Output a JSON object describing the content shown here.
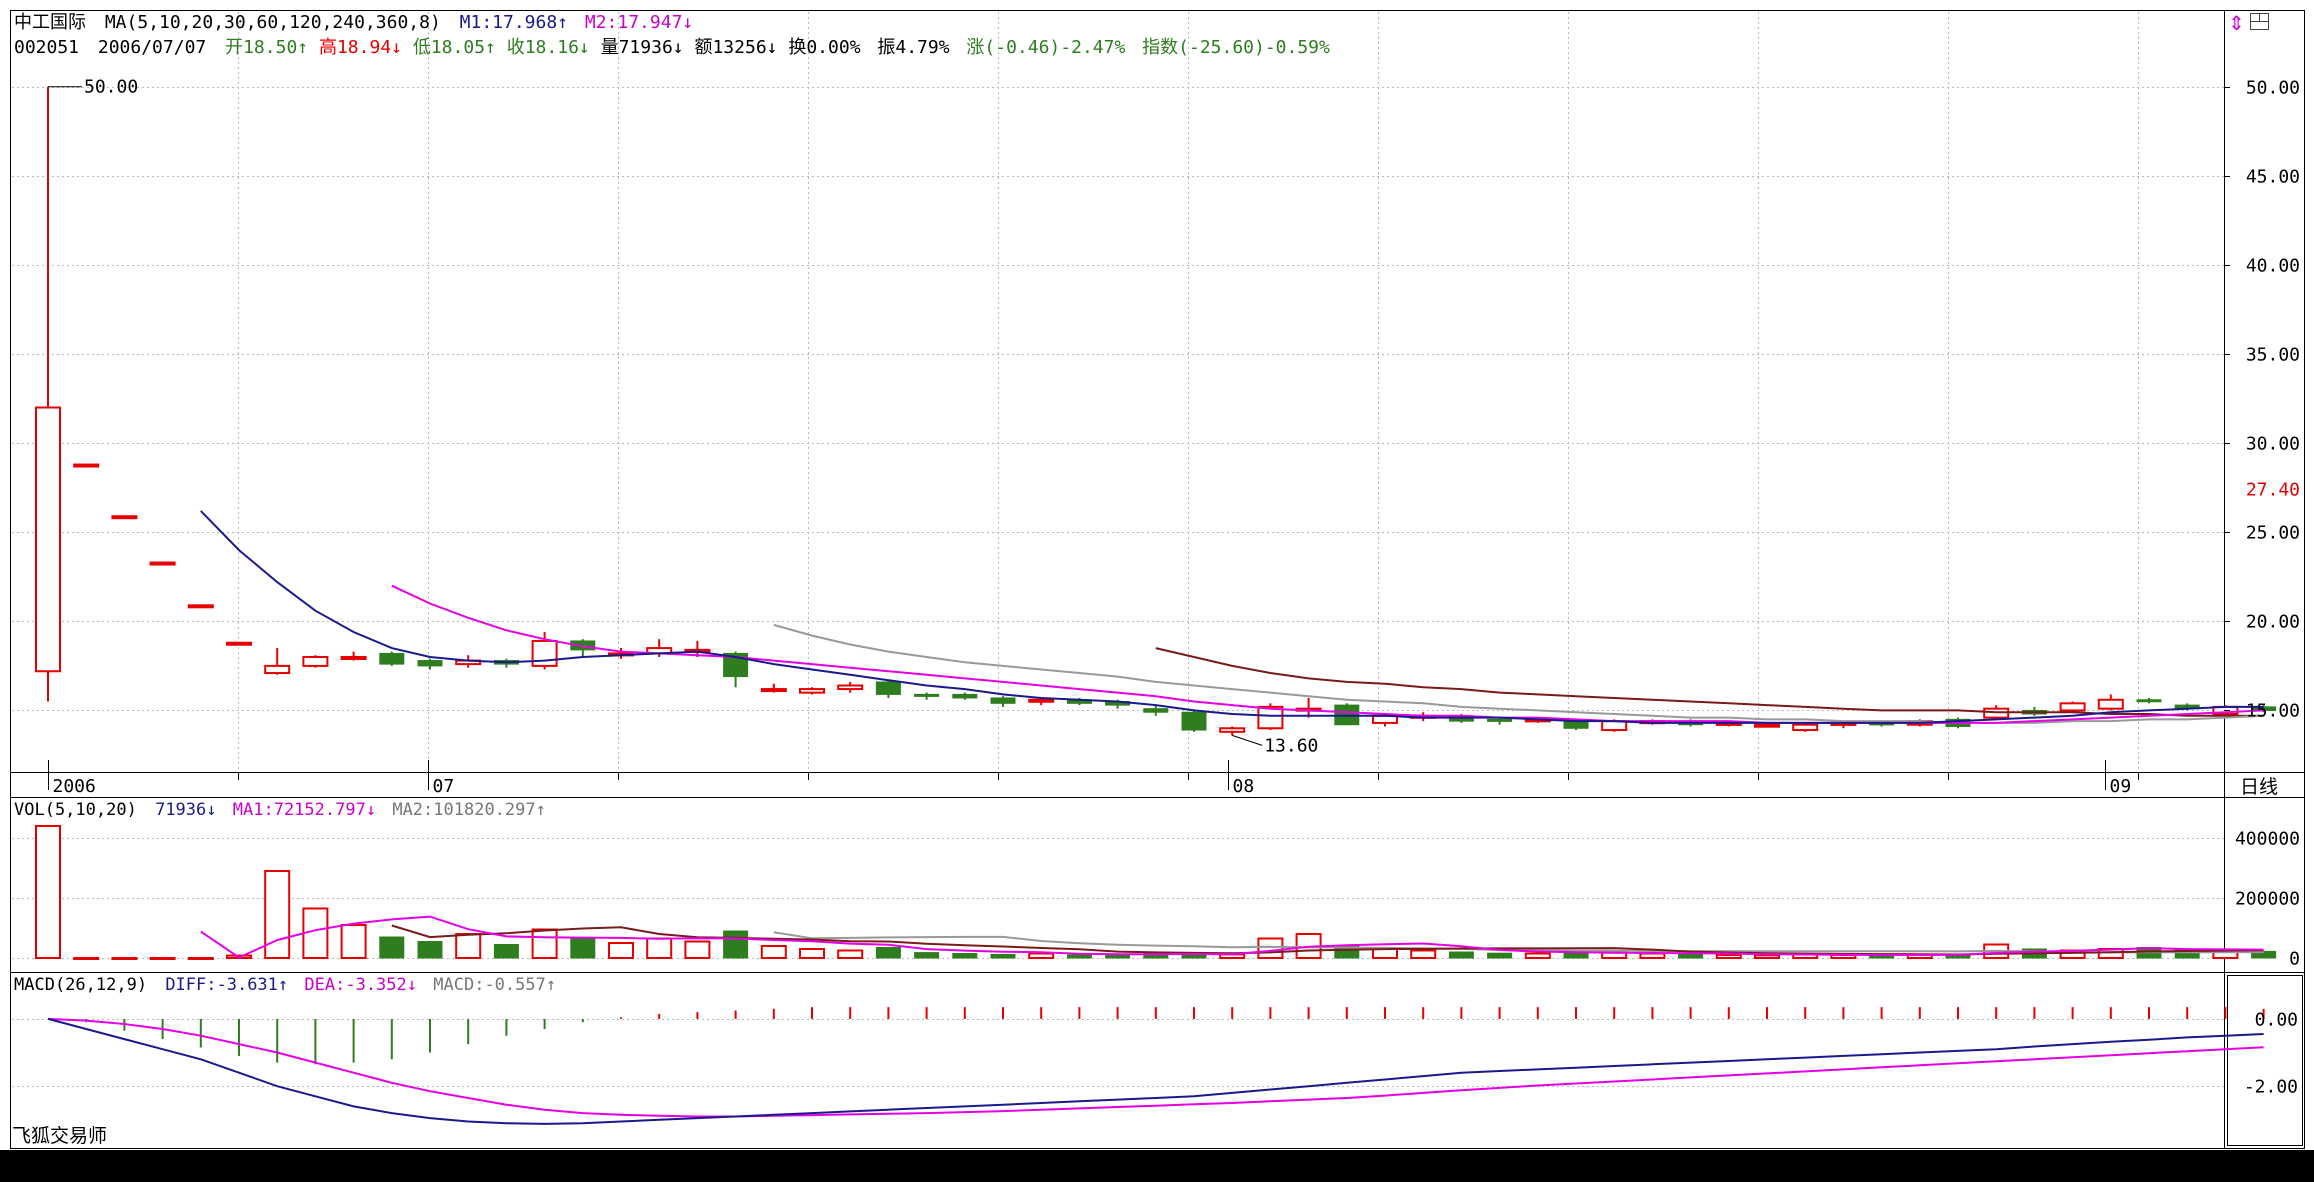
{
  "header": {
    "stock_name": "中工国际",
    "ma_label": "MA(5,10,20,30,60,120,240,360,8)",
    "m1": "M1:17.968",
    "m1_arrow": "↑",
    "m2": "M2:17.947",
    "m2_arrow": "↓",
    "code": "002051",
    "date": "2006/07/07",
    "open": "开18.50",
    "open_arrow": "↑",
    "high": "高18.94",
    "high_arrow": "↓",
    "low": "低18.05",
    "low_arrow": "↑",
    "close": "收18.16",
    "close_arrow": "↓",
    "volume": "量71936",
    "volume_arrow": "↓",
    "amount": "额13256",
    "amount_arrow": "↓",
    "turnover": "换0.00%",
    "amplitude": "振4.79%",
    "change": "涨(-0.46)-2.47%",
    "index_change": "指数(-25.60)-0.59%"
  },
  "price_axis": {
    "ticks": [
      "50.00",
      "45.00",
      "40.00",
      "35.00",
      "30.00",
      "25.00",
      "20.00",
      "15.00"
    ],
    "current_price": "27.40",
    "max_label": "50.00",
    "min_label": "13.60"
  },
  "time_axis": {
    "labels": [
      "2006",
      "07",
      "08",
      "09"
    ],
    "period": "日线"
  },
  "volume_panel": {
    "title": "VOL(5,10,20)",
    "value": "71936",
    "value_arrow": "↓",
    "ma1": "MA1:72152.797",
    "ma1_arrow": "↓",
    "ma2": "MA2:101820.297",
    "ma2_arrow": "↑",
    "ticks": [
      "400000",
      "200000",
      "0"
    ]
  },
  "macd_panel": {
    "title": "MACD(26,12,9)",
    "diff": "DIFF:-3.631",
    "diff_arrow": "↑",
    "dea": "DEA:-3.352",
    "dea_arrow": "↓",
    "macd": "MACD:-0.557",
    "macd_arrow": "↑",
    "ticks": [
      "0.00",
      "-2.00"
    ]
  },
  "app_name": "飞狐交易师",
  "icons": {
    "top_right": [
      "arrows-icon",
      "window-icon"
    ]
  },
  "colors": {
    "up": "#e60000",
    "down": "#2e7d1f",
    "ma1": "#1a1a8c",
    "ma2": "#e600e6",
    "ma3": "#999999",
    "ma4": "#7a1a1a",
    "grid": "#b0b0b0",
    "text_green": "#2e7d1f",
    "text_red": "#e60000",
    "text_blue": "#1a1a8c",
    "text_magenta": "#cc00cc"
  },
  "chart_data": {
    "type": "candlestick",
    "candles": [
      {
        "o": 17.2,
        "h": 50.0,
        "l": 15.5,
        "c": 32.0
      },
      {
        "o": 28.8,
        "h": 28.8,
        "l": 28.8,
        "c": 28.8
      },
      {
        "o": 25.9,
        "h": 25.9,
        "l": 25.9,
        "c": 25.9
      },
      {
        "o": 23.3,
        "h": 23.3,
        "l": 23.3,
        "c": 23.3
      },
      {
        "o": 20.9,
        "h": 20.9,
        "l": 20.9,
        "c": 20.9
      },
      {
        "o": 18.8,
        "h": 18.8,
        "l": 18.8,
        "c": 18.8
      },
      {
        "o": 17.1,
        "h": 18.5,
        "l": 17.0,
        "c": 17.5
      },
      {
        "o": 17.5,
        "h": 18.1,
        "l": 17.4,
        "c": 18.0
      },
      {
        "o": 17.9,
        "h": 18.3,
        "l": 17.8,
        "c": 18.0
      },
      {
        "o": 18.2,
        "h": 18.3,
        "l": 17.5,
        "c": 17.6
      },
      {
        "o": 17.8,
        "h": 17.9,
        "l": 17.3,
        "c": 17.5
      },
      {
        "o": 17.6,
        "h": 18.1,
        "l": 17.4,
        "c": 17.8
      },
      {
        "o": 17.8,
        "h": 17.9,
        "l": 17.4,
        "c": 17.6
      },
      {
        "o": 17.5,
        "h": 19.4,
        "l": 17.3,
        "c": 18.9
      },
      {
        "o": 18.9,
        "h": 19.0,
        "l": 18.0,
        "c": 18.4
      },
      {
        "o": 18.1,
        "h": 18.5,
        "l": 17.9,
        "c": 18.2
      },
      {
        "o": 18.2,
        "h": 19.0,
        "l": 18.0,
        "c": 18.5
      },
      {
        "o": 18.3,
        "h": 18.9,
        "l": 18.0,
        "c": 18.4
      },
      {
        "o": 18.2,
        "h": 18.3,
        "l": 16.3,
        "c": 16.9
      },
      {
        "o": 16.1,
        "h": 16.5,
        "l": 16.0,
        "c": 16.2
      },
      {
        "o": 16.0,
        "h": 16.3,
        "l": 15.9,
        "c": 16.2
      },
      {
        "o": 16.2,
        "h": 16.6,
        "l": 16.0,
        "c": 16.4
      },
      {
        "o": 16.6,
        "h": 16.7,
        "l": 15.7,
        "c": 15.9
      },
      {
        "o": 15.9,
        "h": 16.0,
        "l": 15.6,
        "c": 15.8
      },
      {
        "o": 15.9,
        "h": 16.0,
        "l": 15.6,
        "c": 15.7
      },
      {
        "o": 15.7,
        "h": 15.8,
        "l": 15.2,
        "c": 15.4
      },
      {
        "o": 15.5,
        "h": 15.7,
        "l": 15.3,
        "c": 15.6
      },
      {
        "o": 15.6,
        "h": 15.7,
        "l": 15.3,
        "c": 15.4
      },
      {
        "o": 15.5,
        "h": 15.6,
        "l": 15.1,
        "c": 15.3
      },
      {
        "o": 15.1,
        "h": 15.3,
        "l": 14.7,
        "c": 14.9
      },
      {
        "o": 14.9,
        "h": 15.0,
        "l": 13.8,
        "c": 13.9
      },
      {
        "o": 13.8,
        "h": 14.1,
        "l": 13.6,
        "c": 14.0
      },
      {
        "o": 14.0,
        "h": 15.4,
        "l": 13.9,
        "c": 15.2
      },
      {
        "o": 15.0,
        "h": 15.7,
        "l": 14.6,
        "c": 15.1
      },
      {
        "o": 15.3,
        "h": 15.4,
        "l": 14.2,
        "c": 14.2
      },
      {
        "o": 14.3,
        "h": 14.8,
        "l": 14.1,
        "c": 14.7
      },
      {
        "o": 14.6,
        "h": 14.9,
        "l": 14.4,
        "c": 14.7
      },
      {
        "o": 14.7,
        "h": 14.8,
        "l": 14.3,
        "c": 14.4
      },
      {
        "o": 14.5,
        "h": 14.6,
        "l": 14.2,
        "c": 14.4
      },
      {
        "o": 14.4,
        "h": 14.6,
        "l": 14.3,
        "c": 14.5
      },
      {
        "o": 14.4,
        "h": 14.5,
        "l": 13.9,
        "c": 14.0
      },
      {
        "o": 13.9,
        "h": 14.5,
        "l": 13.8,
        "c": 14.4
      },
      {
        "o": 14.3,
        "h": 14.5,
        "l": 14.2,
        "c": 14.4
      },
      {
        "o": 14.4,
        "h": 14.5,
        "l": 14.1,
        "c": 14.2
      },
      {
        "o": 14.2,
        "h": 14.4,
        "l": 14.1,
        "c": 14.3
      },
      {
        "o": 14.2,
        "h": 14.3,
        "l": 14.1,
        "c": 14.2
      },
      {
        "o": 13.9,
        "h": 14.3,
        "l": 13.8,
        "c": 14.2
      },
      {
        "o": 14.2,
        "h": 14.4,
        "l": 14.0,
        "c": 14.3
      },
      {
        "o": 14.3,
        "h": 14.4,
        "l": 14.1,
        "c": 14.2
      },
      {
        "o": 14.2,
        "h": 14.5,
        "l": 14.1,
        "c": 14.4
      },
      {
        "o": 14.5,
        "h": 14.6,
        "l": 14.0,
        "c": 14.1
      },
      {
        "o": 14.6,
        "h": 15.3,
        "l": 14.5,
        "c": 15.1
      },
      {
        "o": 15.0,
        "h": 15.2,
        "l": 14.7,
        "c": 14.8
      },
      {
        "o": 15.0,
        "h": 15.5,
        "l": 14.9,
        "c": 15.4
      },
      {
        "o": 15.1,
        "h": 15.9,
        "l": 15.0,
        "c": 15.6
      },
      {
        "o": 15.6,
        "h": 15.7,
        "l": 15.4,
        "c": 15.5
      },
      {
        "o": 15.3,
        "h": 15.4,
        "l": 15.0,
        "c": 15.1
      },
      {
        "o": 14.8,
        "h": 15.3,
        "l": 14.7,
        "c": 15.2
      },
      {
        "o": 15.2,
        "h": 15.3,
        "l": 14.9,
        "c": 15.0
      }
    ],
    "ma1": [
      null,
      null,
      null,
      null,
      26.2,
      24.0,
      22.2,
      20.6,
      19.4,
      18.5,
      18.0,
      17.8,
      17.7,
      17.8,
      18.0,
      18.1,
      18.2,
      18.3,
      18.0,
      17.6,
      17.3,
      17.0,
      16.7,
      16.4,
      16.2,
      15.9,
      15.7,
      15.6,
      15.5,
      15.3,
      15.0,
      14.8,
      14.7,
      14.7,
      14.7,
      14.7,
      14.6,
      14.6,
      14.6,
      14.5,
      14.4,
      14.4,
      14.3,
      14.3,
      14.3,
      14.3,
      14.3,
      14.3,
      14.3,
      14.3,
      14.4,
      14.5,
      14.6,
      14.7,
      14.9,
      15.0,
      15.1,
      15.2,
      15.2
    ],
    "ma2": [
      null,
      null,
      null,
      null,
      null,
      null,
      null,
      null,
      null,
      22.0,
      21.0,
      20.2,
      19.5,
      19.0,
      18.6,
      18.3,
      18.2,
      18.1,
      18.0,
      17.8,
      17.6,
      17.4,
      17.2,
      17.0,
      16.8,
      16.6,
      16.4,
      16.2,
      16.0,
      15.8,
      15.5,
      15.3,
      15.1,
      15.0,
      14.9,
      14.8,
      14.7,
      14.7,
      14.6,
      14.6,
      14.5,
      14.4,
      14.4,
      14.4,
      14.4,
      14.3,
      14.3,
      14.3,
      14.3,
      14.3,
      14.3,
      14.3,
      14.4,
      14.5,
      14.6,
      14.7,
      14.8,
      14.9,
      15.0
    ],
    "ma3": [
      null,
      null,
      null,
      null,
      null,
      null,
      null,
      null,
      null,
      null,
      null,
      null,
      null,
      null,
      null,
      null,
      null,
      null,
      null,
      19.8,
      19.2,
      18.7,
      18.3,
      18.0,
      17.7,
      17.5,
      17.3,
      17.1,
      16.9,
      16.6,
      16.4,
      16.2,
      16.0,
      15.8,
      15.6,
      15.5,
      15.4,
      15.2,
      15.1,
      15.0,
      14.9,
      14.8,
      14.7,
      14.6,
      14.6,
      14.5,
      14.5,
      14.4,
      14.4,
      14.4,
      14.3,
      14.3,
      14.3,
      14.4,
      14.4,
      14.5,
      14.5,
      14.6,
      14.7
    ],
    "ma4": [
      null,
      null,
      null,
      null,
      null,
      null,
      null,
      null,
      null,
      null,
      null,
      null,
      null,
      null,
      null,
      null,
      null,
      null,
      null,
      null,
      null,
      null,
      null,
      null,
      null,
      null,
      null,
      null,
      null,
      18.5,
      18.0,
      17.5,
      17.1,
      16.8,
      16.6,
      16.5,
      16.3,
      16.2,
      16.0,
      15.9,
      15.8,
      15.7,
      15.6,
      15.5,
      15.4,
      15.3,
      15.2,
      15.1,
      15.0,
      15.0,
      15.0,
      14.9,
      14.9,
      14.9,
      14.8,
      14.8,
      14.7,
      14.7,
      14.7
    ],
    "volume": [
      440000,
      0,
      0,
      0,
      0,
      8000,
      290000,
      165000,
      110000,
      70000,
      55000,
      80000,
      45000,
      95000,
      65000,
      50000,
      65000,
      55000,
      90000,
      40000,
      30000,
      25000,
      35000,
      18000,
      15000,
      12000,
      15000,
      10000,
      12000,
      15000,
      14000,
      12000,
      65000,
      80000,
      40000,
      32000,
      25000,
      20000,
      16000,
      15000,
      20000,
      18000,
      15000,
      12000,
      10000,
      9000,
      12000,
      10000,
      9000,
      11000,
      10000,
      45000,
      30000,
      25000,
      30000,
      35000,
      28000,
      25000,
      22000
    ],
    "macd_hist": [
      0,
      -0.1,
      -0.35,
      -0.6,
      -0.85,
      -1.1,
      -1.3,
      -1.35,
      -1.3,
      -1.2,
      -1.0,
      -0.75,
      -0.5,
      -0.3,
      -0.1,
      0.05,
      0.15,
      0.2,
      0.25,
      0.3,
      0.35,
      0.35,
      0.35,
      0.35,
      0.35,
      0.35,
      0.35,
      0.35,
      0.35,
      0.35,
      0.35,
      0.35,
      0.35,
      0.35,
      0.35,
      0.35,
      0.35,
      0.35,
      0.35,
      0.35,
      0.35,
      0.35,
      0.35,
      0.35,
      0.35,
      0.35,
      0.35,
      0.35,
      0.35,
      0.35,
      0.35,
      0.35,
      0.35,
      0.35,
      0.35,
      0.35,
      0.35,
      0.35,
      0.3
    ],
    "diff": [
      0,
      -0.3,
      -0.6,
      -0.9,
      -1.2,
      -1.6,
      -2.0,
      -2.3,
      -2.6,
      -2.8,
      -2.95,
      -3.05,
      -3.1,
      -3.12,
      -3.1,
      -3.05,
      -3.0,
      -2.95,
      -2.9,
      -2.85,
      -2.8,
      -2.75,
      -2.7,
      -2.65,
      -2.6,
      -2.55,
      -2.5,
      -2.45,
      -2.4,
      -2.35,
      -2.3,
      -2.2,
      -2.1,
      -2.0,
      -1.9,
      -1.8,
      -1.7,
      -1.6,
      -1.55,
      -1.5,
      -1.45,
      -1.4,
      -1.35,
      -1.3,
      -1.25,
      -1.2,
      -1.15,
      -1.1,
      -1.05,
      -1.0,
      -0.95,
      -0.9,
      -0.82,
      -0.75,
      -0.68,
      -0.62,
      -0.55,
      -0.5,
      -0.45
    ],
    "dea": [
      0,
      -0.05,
      -0.15,
      -0.3,
      -0.5,
      -0.75,
      -1.0,
      -1.3,
      -1.6,
      -1.9,
      -2.15,
      -2.35,
      -2.55,
      -2.7,
      -2.8,
      -2.85,
      -2.88,
      -2.9,
      -2.9,
      -2.88,
      -2.86,
      -2.84,
      -2.82,
      -2.8,
      -2.77,
      -2.74,
      -2.7,
      -2.66,
      -2.62,
      -2.58,
      -2.54,
      -2.5,
      -2.45,
      -2.4,
      -2.35,
      -2.28,
      -2.2,
      -2.12,
      -2.05,
      -1.98,
      -1.92,
      -1.86,
      -1.8,
      -1.74,
      -1.68,
      -1.62,
      -1.56,
      -1.5,
      -1.44,
      -1.38,
      -1.32,
      -1.26,
      -1.2,
      -1.14,
      -1.08,
      -1.02,
      -0.96,
      -0.9,
      -0.84
    ],
    "ylim_price": [
      12.5,
      51.5
    ],
    "ylim_volume": [
      0,
      460000
    ],
    "ylim_macd": [
      -3.6,
      0.8
    ]
  }
}
